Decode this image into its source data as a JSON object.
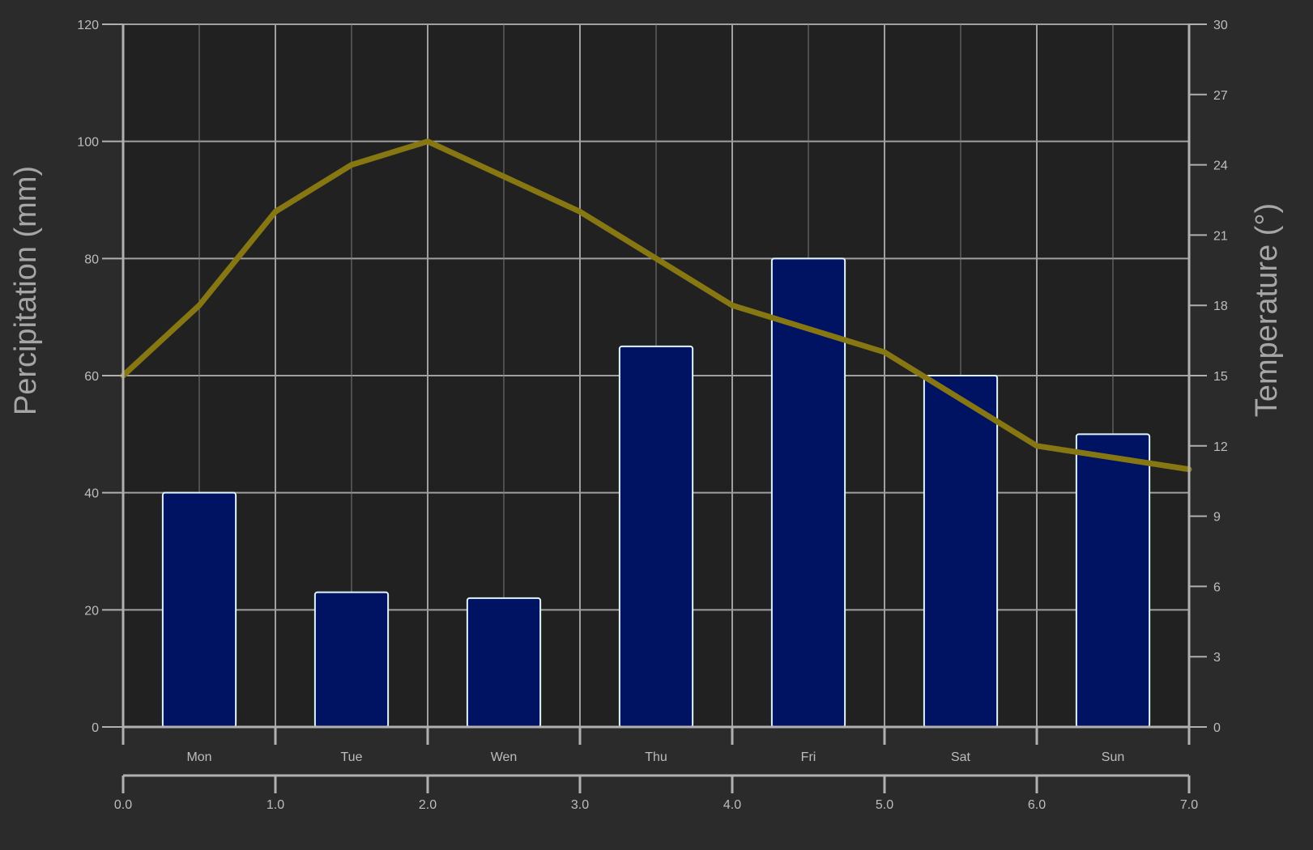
{
  "chart_data": {
    "type": "bar",
    "categories": [
      "Mon",
      "Tue",
      "Wen",
      "Thu",
      "Fri",
      "Sat",
      "Sun"
    ],
    "series": [
      {
        "type": "bar",
        "axis": "left",
        "values": [
          40,
          23,
          22,
          65,
          80,
          60,
          50
        ],
        "color": "#001262",
        "edge_color": "#e0f4ff"
      },
      {
        "type": "line",
        "axis": "right",
        "x": [
          0,
          0.5,
          1,
          1.5,
          2,
          3,
          4,
          5,
          6,
          7
        ],
        "values": [
          15,
          18,
          22,
          24,
          25,
          22,
          18,
          16,
          12,
          11
        ],
        "color": "#867712"
      }
    ],
    "ylabel": "Percipitation (mm)",
    "ylabel_right": "Temperature (°)",
    "ylim": [
      0,
      120
    ],
    "ylim_right": [
      0,
      30
    ],
    "xlim": [
      0,
      7
    ],
    "yticks": [
      "0",
      "20",
      "40",
      "60",
      "80",
      "100",
      "120"
    ],
    "yticks_right": [
      "0",
      "3",
      "6",
      "9",
      "12",
      "15",
      "18",
      "21",
      "24",
      "27",
      "30"
    ],
    "xticks_numeric": [
      "0.0",
      "1.0",
      "2.0",
      "3.0",
      "4.0",
      "5.0",
      "6.0",
      "7.0"
    ],
    "grid": true,
    "background_color": "#212121",
    "grid_color": "#a0a0a0"
  }
}
